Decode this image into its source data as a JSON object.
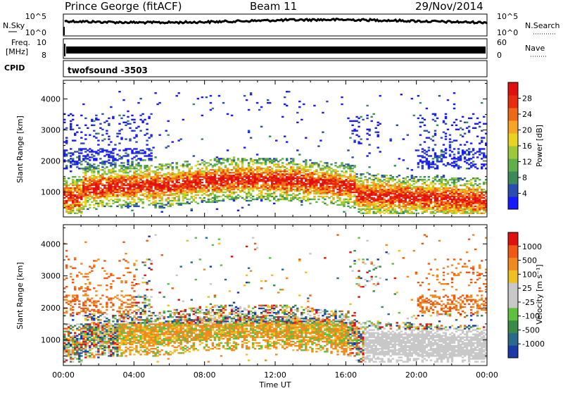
{
  "header": {
    "station": "Prince George (fitACF)",
    "beam": "Beam 11",
    "date": "29/Nov/2014"
  },
  "noise_panel": {
    "left_label": "N.Sky",
    "left_ticks": [
      "10^5",
      "10^0"
    ],
    "right_label": "N.Search",
    "right_ticks": [
      "10^5",
      "10^0"
    ]
  },
  "freq_panel": {
    "left_label_1": "Freq.",
    "left_label_2": "[MHz]",
    "left_ticks": [
      "10",
      "8"
    ],
    "right_label": "Nave",
    "right_ticks": [
      "60",
      "0"
    ]
  },
  "cpid_panel": {
    "label": "CPID",
    "value": "twofsound -3503"
  },
  "chart_data": [
    {
      "type": "heatmap",
      "name": "power",
      "ylabel": "Slant Range [km]",
      "xlabel": "Time UT",
      "x_ticks": [
        "00:00",
        "04:00",
        "08:00",
        "12:00",
        "16:00",
        "20:00",
        "00:00"
      ],
      "y_ticks": [
        "1000",
        "2000",
        "3000",
        "4000"
      ],
      "ylim": [
        200,
        4600
      ],
      "colorbar": {
        "label": "Power [dB]",
        "ticks": [
          "4",
          "8",
          "12",
          "16",
          "20",
          "24",
          "28"
        ],
        "colors": [
          "#1a1aff",
          "#2a4db0",
          "#3c8a5a",
          "#5fb04a",
          "#9cc83c",
          "#e8d41e",
          "#f5a623",
          "#ef6a16",
          "#e82c10",
          "#e01010"
        ]
      }
    },
    {
      "type": "heatmap",
      "name": "velocity",
      "ylabel": "Slant Range [km]",
      "xlabel": "Time UT",
      "x_ticks": [
        "00:00",
        "04:00",
        "08:00",
        "12:00",
        "16:00",
        "20:00",
        "00:00"
      ],
      "y_ticks": [
        "1000",
        "2000",
        "3000",
        "4000"
      ],
      "ylim": [
        200,
        4600
      ],
      "colorbar": {
        "label": "Velocity [m s⁻¹]",
        "ticks": [
          "1000",
          "500",
          "100",
          "25",
          "-25",
          "-100",
          "-500",
          "-1000"
        ],
        "colors": [
          "#1a3aa8",
          "#2a6a8a",
          "#3a8a4a",
          "#5fc040",
          "#c8c8c8",
          "#c8c8c8",
          "#f0c020",
          "#f08a20",
          "#ee5a16",
          "#e01010"
        ]
      }
    }
  ],
  "xaxis_title": "Time UT"
}
